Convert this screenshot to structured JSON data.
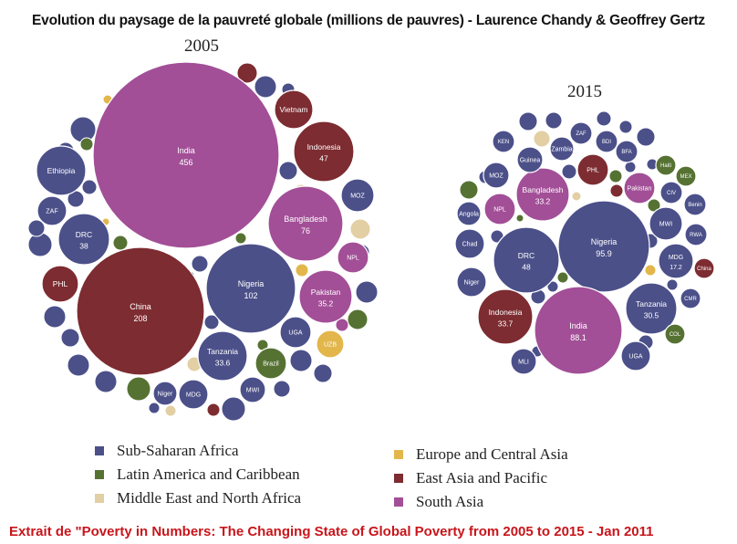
{
  "title": "Evolution du paysage de la pauvreté globale (millions de pauvres) - Laurence Chandy & Geoffrey Gertz",
  "credit": "Extrait de \"Poverty in Numbers: The Changing State of Global Poverty from 2005 to 2015 - Jan 2011",
  "colors": {
    "Sub-Saharan Africa": "#4b5089",
    "Latin America and Caribbean": "#567233",
    "Middle East and North Africa": "#e3cfa4",
    "Europe and Central Asia": "#e2b64b",
    "East Asia and Pacific": "#7d2c31",
    "South Asia": "#a24f97"
  },
  "legend": [
    {
      "label": "Sub-Saharan Africa",
      "region": "Sub-Saharan Africa"
    },
    {
      "label": "Latin America and Caribbean",
      "region": "Latin America and Caribbean"
    },
    {
      "label": "Middle East and North Africa",
      "region": "Middle East and North Africa"
    },
    {
      "label": "Europe and Central Asia",
      "region": "Europe and Central Asia"
    },
    {
      "label": "East Asia and Pacific",
      "region": "East Asia and Pacific"
    },
    {
      "label": "South Asia",
      "region": "South Asia"
    }
  ],
  "chart_data": [
    {
      "type": "bubble",
      "title": "2005",
      "units": "millions de pauvres",
      "bubbles": [
        {
          "label": "India",
          "value": 456,
          "region": "South Asia"
        },
        {
          "label": "China",
          "value": 208,
          "region": "East Asia and Pacific"
        },
        {
          "label": "Nigeria",
          "value": 102,
          "region": "Sub-Saharan Africa"
        },
        {
          "label": "Bangladesh",
          "value": 76,
          "region": "South Asia"
        },
        {
          "label": "Indonesia",
          "value": 47,
          "region": "East Asia and Pacific"
        },
        {
          "label": "DRC",
          "value": 38,
          "region": "Sub-Saharan Africa"
        },
        {
          "label": "Pakistan",
          "value": 35.2,
          "region": "South Asia"
        },
        {
          "label": "Tanzania",
          "value": 33.6,
          "region": "Sub-Saharan Africa"
        },
        {
          "label": "Ethiopia",
          "region": "Sub-Saharan Africa"
        },
        {
          "label": "Vietnam",
          "region": "East Asia and Pacific"
        },
        {
          "label": "PHL",
          "region": "East Asia and Pacific"
        },
        {
          "label": "MOZ",
          "region": "Sub-Saharan Africa"
        },
        {
          "label": "ZAF",
          "region": "Sub-Saharan Africa"
        },
        {
          "label": "NPL",
          "region": "South Asia"
        },
        {
          "label": "UGA",
          "region": "Sub-Saharan Africa"
        },
        {
          "label": "Brazil",
          "region": "Latin America and Caribbean"
        },
        {
          "label": "UZB",
          "region": "Europe and Central Asia"
        },
        {
          "label": "MDG",
          "region": "Sub-Saharan Africa"
        },
        {
          "label": "MWI",
          "region": "Sub-Saharan Africa"
        },
        {
          "label": "Niger",
          "region": "Sub-Saharan Africa"
        }
      ]
    },
    {
      "type": "bubble",
      "title": "2015",
      "units": "millions de pauvres",
      "bubbles": [
        {
          "label": "Nigeria",
          "value": 95.9,
          "region": "Sub-Saharan Africa"
        },
        {
          "label": "India",
          "value": 88.1,
          "region": "South Asia"
        },
        {
          "label": "DRC",
          "value": 48,
          "region": "Sub-Saharan Africa"
        },
        {
          "label": "Indonesia",
          "value": 33.7,
          "region": "East Asia and Pacific"
        },
        {
          "label": "Bangladesh",
          "value": 33.2,
          "region": "South Asia"
        },
        {
          "label": "Tanzania",
          "value": 30.5,
          "region": "Sub-Saharan Africa"
        },
        {
          "label": "MDG",
          "value": 17.2,
          "region": "Sub-Saharan Africa"
        },
        {
          "label": "KEN",
          "region": "Sub-Saharan Africa"
        },
        {
          "label": "ZAF",
          "region": "Sub-Saharan Africa"
        },
        {
          "label": "BDI",
          "region": "Sub-Saharan Africa"
        },
        {
          "label": "Zambia",
          "region": "Sub-Saharan Africa"
        },
        {
          "label": "BFA",
          "region": "Sub-Saharan Africa"
        },
        {
          "label": "Guinea",
          "region": "Sub-Saharan Africa"
        },
        {
          "label": "Haiti",
          "region": "Latin America and Caribbean"
        },
        {
          "label": "PHL",
          "region": "East Asia and Pacific"
        },
        {
          "label": "MEX",
          "region": "Latin America and Caribbean"
        },
        {
          "label": "MOZ",
          "region": "Sub-Saharan Africa"
        },
        {
          "label": "Pakistan",
          "region": "South Asia"
        },
        {
          "label": "CIV",
          "region": "Sub-Saharan Africa"
        },
        {
          "label": "NPL",
          "region": "South Asia"
        },
        {
          "label": "Benin",
          "region": "Sub-Saharan Africa"
        },
        {
          "label": "Angola",
          "region": "Sub-Saharan Africa"
        },
        {
          "label": "MWI",
          "region": "Sub-Saharan Africa"
        },
        {
          "label": "RWA",
          "region": "Sub-Saharan Africa"
        },
        {
          "label": "Chad",
          "region": "Sub-Saharan Africa"
        },
        {
          "label": "China",
          "region": "East Asia and Pacific"
        },
        {
          "label": "Niger",
          "region": "Sub-Saharan Africa"
        },
        {
          "label": "CMR",
          "region": "Sub-Saharan Africa"
        },
        {
          "label": "COL",
          "region": "Latin America and Caribbean"
        },
        {
          "label": "UGA",
          "region": "Sub-Saharan Africa"
        },
        {
          "label": "MLI",
          "region": "Sub-Saharan Africa"
        }
      ]
    }
  ]
}
